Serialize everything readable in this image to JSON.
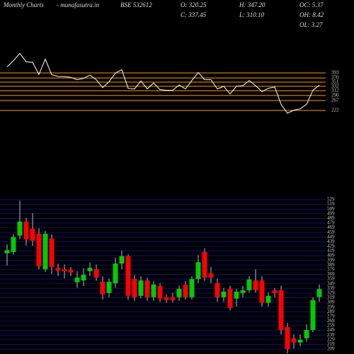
{
  "header": {
    "site": "Monthly Charts",
    "source": "- munafasutra.in",
    "symbol": "BSE 532612",
    "stats": [
      "O: 320.25",
      "C: 337.45",
      "H: 347.20",
      "L: 310.10",
      "OC: 5.37",
      "OH: 8.42",
      "OL: 3.27"
    ]
  },
  "chart_data": [
    {
      "type": "line",
      "color": "#ffffff",
      "level_color": "#ff9900",
      "ylim": [
        209,
        435
      ],
      "levels": [
        393,
        370,
        351,
        332,
        312,
        290,
        267,
        222
      ]
    },
    {
      "type": "candlestick",
      "up_color": "#00cc00",
      "down_color": "#ff0000",
      "grid_color": "#1414a0",
      "ylim": [
        209,
        529
      ],
      "yticks": [
        209,
        219,
        229,
        239,
        249,
        259,
        269,
        279,
        289,
        299,
        309,
        319,
        329,
        339,
        349,
        359,
        369,
        379,
        389,
        399,
        409,
        419,
        429,
        439,
        449,
        459,
        469,
        479,
        489,
        499,
        509,
        519,
        529
      ],
      "open": [
        414,
        417,
        452,
        482,
        467,
        456,
        380,
        446,
        383,
        380,
        379,
        352,
        356,
        376,
        380,
        353,
        329,
        350,
        392,
        408,
        359,
        323,
        356,
        320,
        344,
        320,
        320,
        320,
        347,
        320,
        359,
        417,
        371,
        350,
        320,
        338,
        317,
        329,
        335,
        356,
        356,
        308,
        335,
        335,
        256,
        232,
        223,
        232,
        250,
        320.25
      ],
      "high": [
        433,
        455,
        527,
        490,
        500,
        468,
        462,
        455,
        392,
        390,
        385,
        376,
        382,
        395,
        390,
        365,
        360,
        405,
        420,
        412,
        368,
        365,
        362,
        355,
        350,
        326,
        330,
        345,
        355,
        365,
        410,
        425,
        385,
        360,
        340,
        345,
        338,
        345,
        365,
        380,
        365,
        330,
        340,
        345,
        265,
        240,
        240,
        262,
        320,
        347.2
      ],
      "low": [
        388,
        411,
        444,
        431,
        430,
        380,
        374,
        370,
        365,
        360,
        365,
        340,
        344,
        365,
        355,
        315,
        320,
        340,
        380,
        315,
        312,
        318,
        312,
        312,
        310,
        308,
        309,
        312,
        315,
        315,
        350,
        355,
        350,
        310,
        310,
        292,
        300,
        320,
        330,
        330,
        300,
        300,
        320,
        240,
        200,
        210,
        215,
        225,
        245,
        310.1
      ],
      "close": [
        421,
        449,
        482,
        444,
        441,
        386,
        456,
        385,
        377,
        376,
        373,
        362,
        368,
        383,
        362,
        326,
        353,
        392,
        408,
        323,
        320,
        356,
        320,
        347,
        317,
        314,
        314,
        338,
        320,
        359,
        395,
        362,
        362,
        320,
        332,
        297,
        332,
        335,
        358,
        335,
        308,
        323,
        329,
        250,
        209,
        223,
        229,
        250,
        314,
        337.45
      ]
    }
  ]
}
